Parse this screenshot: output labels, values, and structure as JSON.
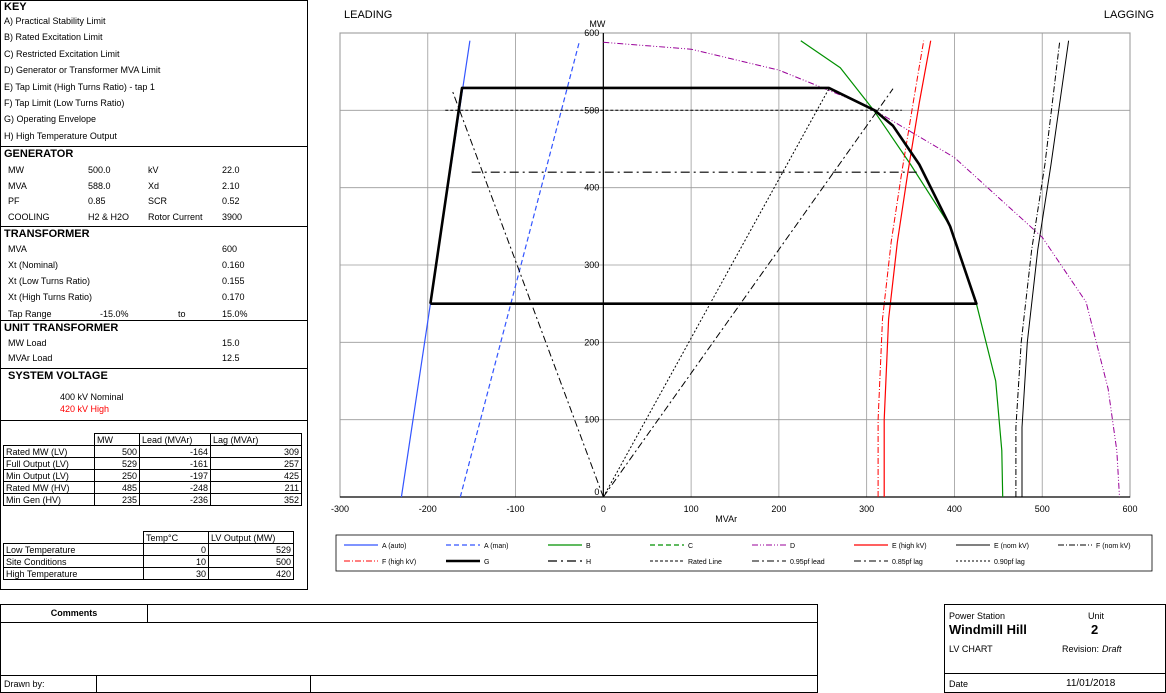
{
  "key": {
    "title": "KEY",
    "items": [
      "A) Practical Stability Limit",
      "B) Rated Excitation Limit",
      "C) Restricted Excitation Limit",
      "D) Generator or Transformer MVA Limit",
      "E) Tap Limit (High Turns Ratio) - tap 1",
      "F) Tap Limit (Low Turns Ratio)",
      "G) Operating Envelope",
      "H) High Temperature Output"
    ]
  },
  "generator": {
    "title": "GENERATOR",
    "rows": [
      [
        "MW",
        "500.0",
        "kV",
        "22.0"
      ],
      [
        "MVA",
        "588.0",
        "Xd",
        "2.10"
      ],
      [
        "PF",
        "0.85",
        "SCR",
        "0.52"
      ],
      [
        "COOLING",
        "H2 & H2O",
        "Rotor Current",
        "3900"
      ]
    ]
  },
  "transformer": {
    "title": "TRANSFORMER",
    "rows": [
      [
        "MVA",
        "600"
      ],
      [
        "Xt (Nominal)",
        "0.160"
      ],
      [
        "Xt (Low Turns Ratio)",
        "0.155"
      ],
      [
        "Xt (High Turns Ratio)",
        "0.170"
      ]
    ],
    "tap_range": [
      "Tap Range",
      "-15.0%",
      "to",
      "15.0%"
    ]
  },
  "unit_transformer": {
    "title": "UNIT TRANSFORMER",
    "rows": [
      [
        "MW Load",
        "15.0"
      ],
      [
        "MVAr Load",
        "12.5"
      ]
    ]
  },
  "system_voltage": {
    "title": "SYSTEM VOLTAGE",
    "nominal": "400  kV Nominal",
    "high": "420  kV High",
    "high_color": "#ff0000"
  },
  "ratings_table": {
    "headers": [
      "",
      "MW",
      "Lead (MVAr)",
      "Lag (MVAr)"
    ],
    "rows": [
      [
        "Rated MW (LV)",
        "500",
        "-164",
        "309"
      ],
      [
        "Full Output (LV)",
        "529",
        "-161",
        "257"
      ],
      [
        "Min Output (LV)",
        "250",
        "-197",
        "425"
      ],
      [
        "Rated MW (HV)",
        "485",
        "-248",
        "211"
      ],
      [
        "Min Gen (HV)",
        "235",
        "-236",
        "352"
      ]
    ]
  },
  "temp_table": {
    "headers": [
      "",
      "Temp°C",
      "LV Output (MW)"
    ],
    "rows": [
      [
        "Low Temperature",
        "0",
        "529"
      ],
      [
        "Site Conditions",
        "10",
        "500"
      ],
      [
        "High Temperature",
        "30",
        "420"
      ]
    ]
  },
  "comments": {
    "label": "Comments",
    "drawn_by": "Drawn by:"
  },
  "title_block": {
    "station_label": "Power Station",
    "unit_label": "Unit",
    "station": "Windmill Hill",
    "unit": "2",
    "chart": "LV CHART",
    "revision_label": "Revision:",
    "revision": "Draft",
    "date_label": "Date",
    "date": "11/01/2018"
  },
  "chart_data": {
    "type": "line",
    "corner_labels": {
      "left": "LEADING",
      "right": "LAGGING"
    },
    "xlabel": "MVAr",
    "ylabel": "MW",
    "xlim": [
      -300,
      600
    ],
    "ylim": [
      0,
      600
    ],
    "x_ticks": [
      -300,
      -200,
      -100,
      0,
      100,
      200,
      300,
      400,
      500,
      600
    ],
    "y_ticks": [
      0,
      100,
      200,
      300,
      400,
      500,
      600
    ],
    "grid": true,
    "legend_position": "bottom",
    "series": [
      {
        "name": "A (auto)",
        "color": "#3355ff",
        "dash": "solid",
        "width": 1.2,
        "points": [
          [
            -230,
            0
          ],
          [
            -152,
            590
          ]
        ]
      },
      {
        "name": "A (man)",
        "color": "#3355ff",
        "dash": "5,3",
        "width": 1.2,
        "points": [
          [
            -163,
            0
          ],
          [
            -27,
            590
          ]
        ]
      },
      {
        "name": "B",
        "color": "#009000",
        "dash": "solid",
        "width": 1.2,
        "points": [
          [
            225,
            590
          ],
          [
            270,
            555
          ],
          [
            308,
            500
          ],
          [
            350,
            430
          ],
          [
            395,
            350
          ],
          [
            425,
            250
          ],
          [
            447,
            150
          ],
          [
            454,
            60
          ],
          [
            455,
            0
          ]
        ]
      },
      {
        "name": "C",
        "color": "#009000",
        "dash": "5,3",
        "width": 1.2,
        "points": []
      },
      {
        "name": "D",
        "color": "#990099",
        "dash": "6,2,1,2,1,2",
        "width": 1.0,
        "points": [
          [
            0,
            588
          ],
          [
            100,
            579
          ],
          [
            200,
            552
          ],
          [
            300,
            506
          ],
          [
            400,
            439
          ],
          [
            500,
            336
          ],
          [
            550,
            252
          ],
          [
            575,
            140
          ],
          [
            585,
            60
          ],
          [
            588,
            0
          ]
        ]
      },
      {
        "name": "E (high kV)",
        "color": "#ff0000",
        "dash": "solid",
        "width": 1.2,
        "points": [
          [
            320,
            0
          ],
          [
            320,
            100
          ],
          [
            325,
            230
          ],
          [
            335,
            330
          ],
          [
            347,
            420
          ],
          [
            360,
            510
          ],
          [
            373,
            590
          ]
        ]
      },
      {
        "name": "E (nom kV)",
        "color": "#000000",
        "dash": "solid",
        "width": 1.0,
        "points": [
          [
            477,
            0
          ],
          [
            477,
            90
          ],
          [
            483,
            200
          ],
          [
            495,
            320
          ],
          [
            510,
            430
          ],
          [
            530,
            590
          ]
        ]
      },
      {
        "name": "F (nom kV)",
        "color": "#000000",
        "dash": "6,2,1,2",
        "width": 1.0,
        "points": [
          [
            470,
            0
          ],
          [
            470,
            90
          ],
          [
            476,
            200
          ],
          [
            488,
            320
          ],
          [
            503,
            430
          ],
          [
            520,
            590
          ]
        ]
      },
      {
        "name": "F (high kV)",
        "color": "#ff0000",
        "dash": "6,2,1,2",
        "width": 1.0,
        "points": [
          [
            313,
            0
          ],
          [
            313,
            100
          ],
          [
            318,
            230
          ],
          [
            328,
            330
          ],
          [
            340,
            420
          ],
          [
            353,
            510
          ],
          [
            365,
            590
          ]
        ]
      },
      {
        "name": "G",
        "color": "#000000",
        "dash": "solid",
        "width": 2.6,
        "points": [
          [
            -197,
            250
          ],
          [
            -161,
            529
          ],
          [
            257,
            529
          ],
          [
            309,
            500
          ],
          [
            330,
            480
          ],
          [
            360,
            430
          ],
          [
            395,
            350
          ],
          [
            425,
            250
          ],
          [
            -197,
            250
          ]
        ]
      },
      {
        "name": "H",
        "color": "#000000",
        "dash": "9,4,2,4",
        "width": 1.2,
        "points": [
          [
            -150,
            420
          ],
          [
            357,
            420
          ]
        ]
      },
      {
        "name": "Rated Line",
        "color": "#000000",
        "dash": "3,2",
        "width": 1.0,
        "points": [
          [
            -180,
            500
          ],
          [
            340,
            500
          ]
        ]
      },
      {
        "name": "0.95pf lead",
        "color": "#000000",
        "dash": "7,3,2,3",
        "width": 1.0,
        "points": [
          [
            0,
            0
          ],
          [
            -172,
            525
          ]
        ]
      },
      {
        "name": "0.85pf lag",
        "color": "#000000",
        "dash": "7,3,2,3",
        "width": 1.0,
        "points": [
          [
            0,
            0
          ],
          [
            330,
            528
          ]
        ]
      },
      {
        "name": "0.90pf lag",
        "color": "#000000",
        "dash": "2,2",
        "width": 1.0,
        "points": [
          [
            0,
            0
          ],
          [
            257,
            528
          ]
        ]
      }
    ]
  }
}
